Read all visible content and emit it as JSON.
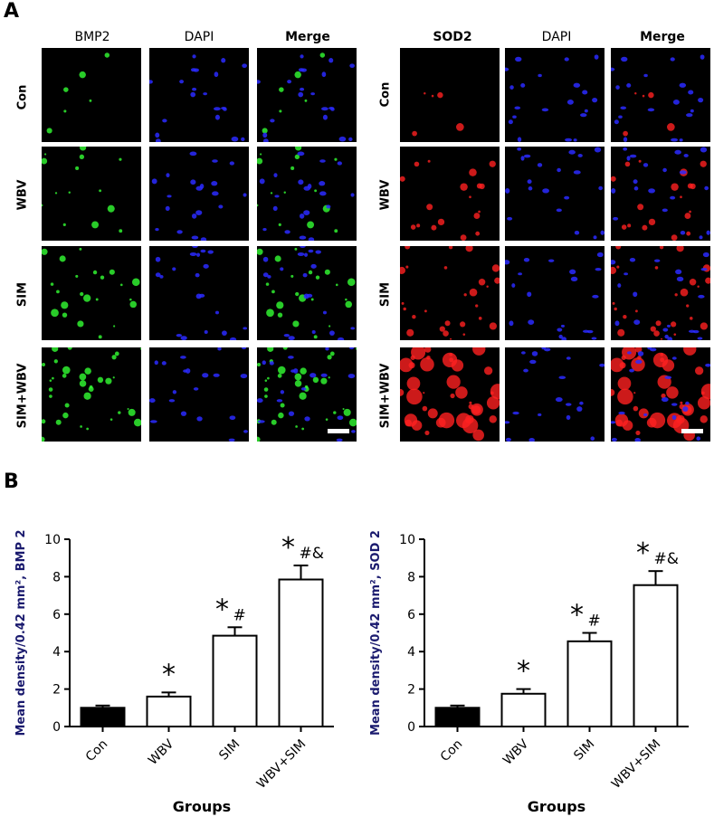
{
  "panel_a": {
    "letter": "A",
    "left_block": {
      "columns": [
        "BMP2",
        "DAPI",
        "Merge"
      ],
      "rows": [
        "Con",
        "WBV",
        "SIM",
        "SIM+WBV"
      ],
      "marker_color": "#33ff33"
    },
    "right_block": {
      "columns": [
        "SOD2",
        "DAPI",
        "Merge"
      ],
      "rows": [
        "Con",
        "WBV",
        "SIM",
        "SIM+WBV"
      ],
      "marker_color": "#ff2020"
    },
    "dapi_color": "#2a2aff"
  },
  "panel_b": {
    "letter": "B"
  },
  "chart_data": [
    {
      "type": "bar",
      "categories": [
        "Con",
        "WBV",
        "SIM",
        "WBV+SIM"
      ],
      "values": [
        1.0,
        1.6,
        4.85,
        7.85
      ],
      "errors": [
        0.12,
        0.22,
        0.45,
        0.75
      ],
      "annotations": [
        "",
        "*",
        "*#",
        "*#&"
      ],
      "bar_fills": [
        "#000000",
        "#ffffff",
        "#ffffff",
        "#ffffff"
      ],
      "xlabel": "Groups",
      "ylabel": "Mean density/0.42 mm², BMP 2",
      "ylim": [
        0,
        10
      ],
      "yticks": [
        0,
        2,
        4,
        6,
        8,
        10
      ],
      "ylabel_color": "#1a1a6e"
    },
    {
      "type": "bar",
      "categories": [
        "Con",
        "WBV",
        "SIM",
        "WBV+SIM"
      ],
      "values": [
        1.0,
        1.75,
        4.55,
        7.55
      ],
      "errors": [
        0.12,
        0.25,
        0.45,
        0.75
      ],
      "annotations": [
        "",
        "*",
        "*#",
        "*#&"
      ],
      "bar_fills": [
        "#000000",
        "#ffffff",
        "#ffffff",
        "#ffffff"
      ],
      "xlabel": "Groups",
      "ylabel": "Mean density/0.42 mm², SOD 2",
      "ylim": [
        0,
        10
      ],
      "yticks": [
        0,
        2,
        4,
        6,
        8,
        10
      ],
      "ylabel_color": "#1a1a6e"
    }
  ]
}
